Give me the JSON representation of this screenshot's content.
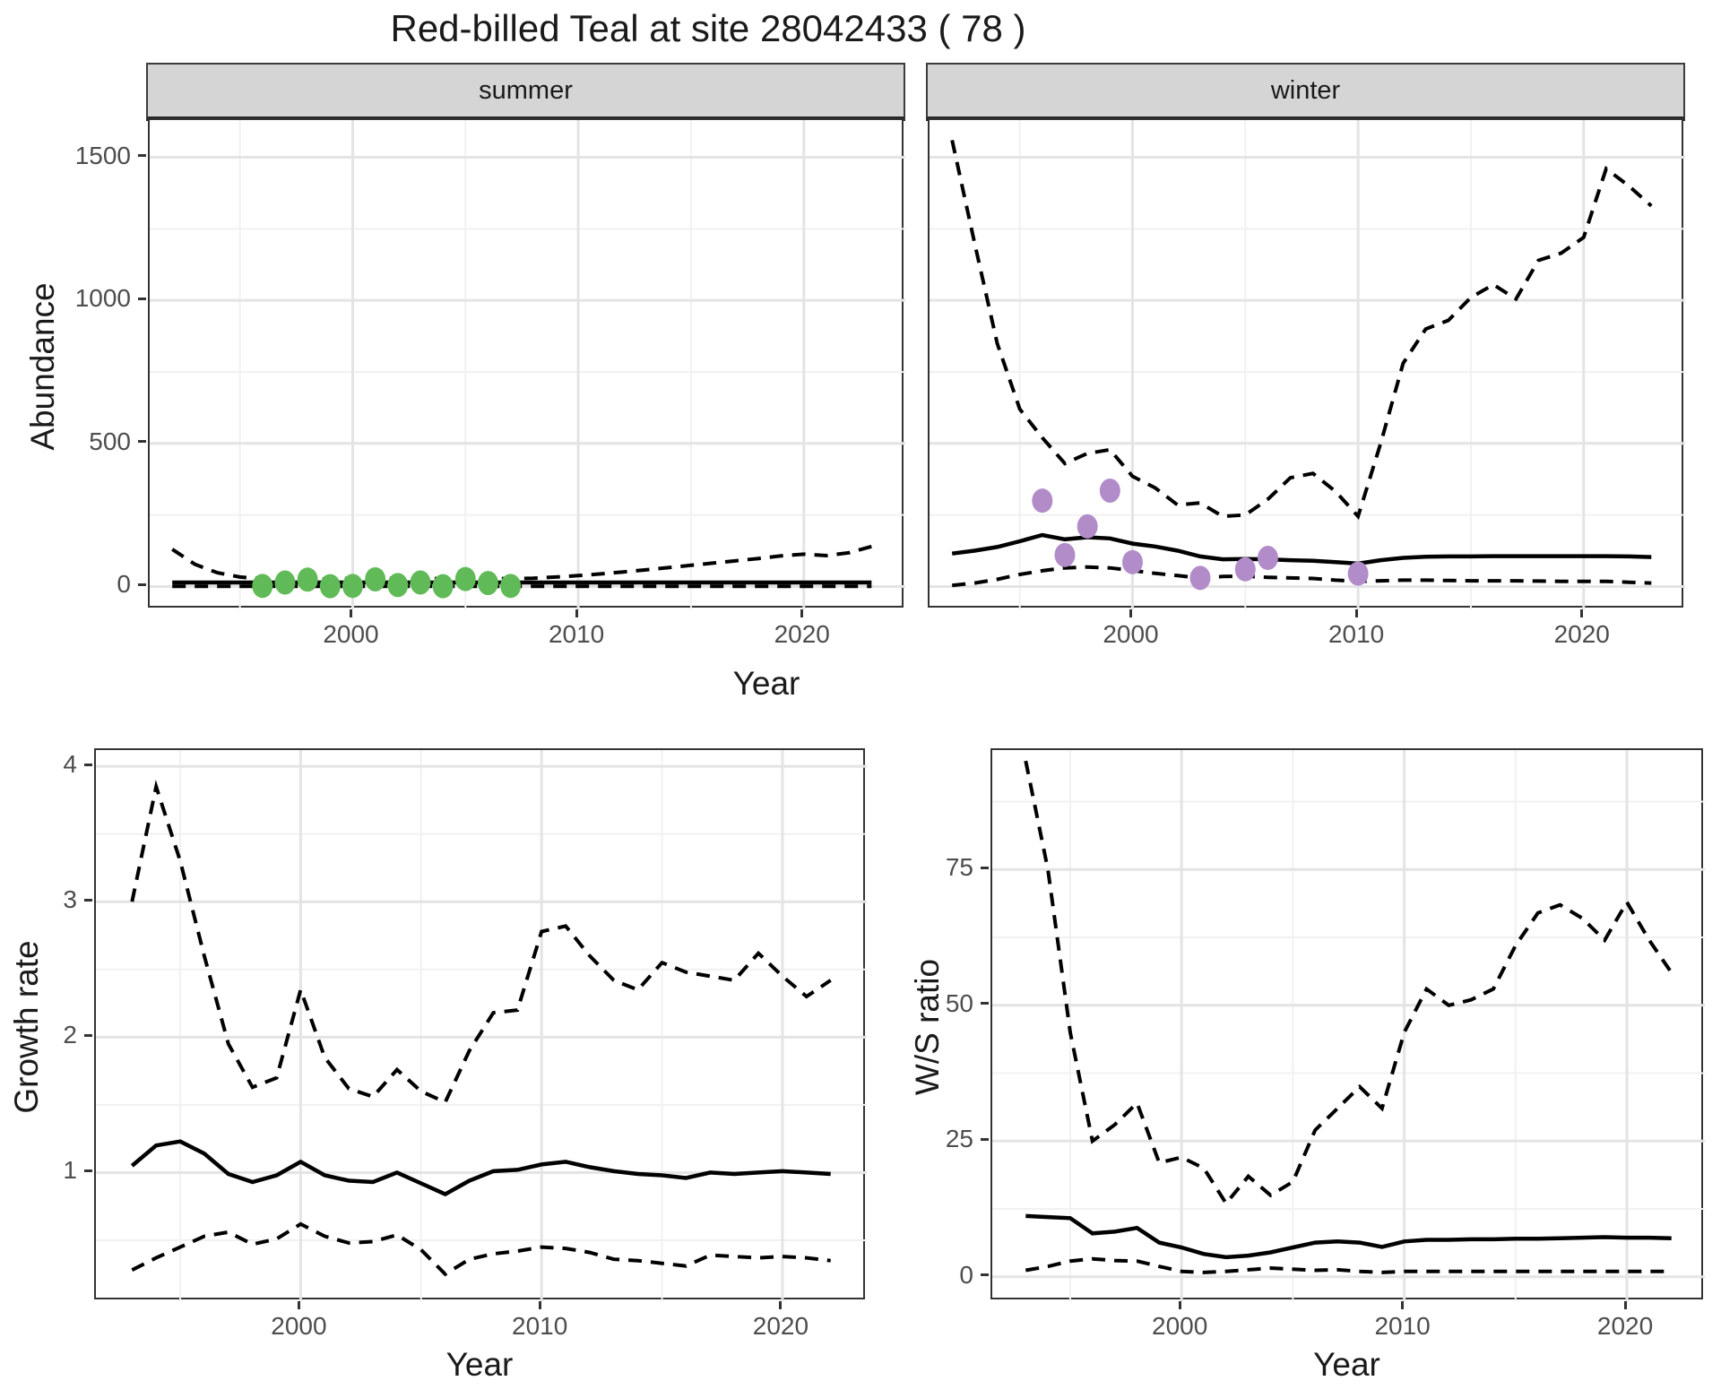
{
  "title": "Red-billed Teal at site 28042433 ( 78 )",
  "labels": {
    "y_top": "Abundance",
    "x_top": "Year",
    "y_bottom_left": "Growth rate",
    "x_bottom_left": "Year",
    "y_bottom_right": "W/S ratio",
    "x_bottom_right": "Year"
  },
  "colors": {
    "observed_summer_dot": "#61ba58",
    "observed_winter_dot": "#b18cc9",
    "line": "#000000",
    "strip_bg": "#d5d5d5",
    "grid_major": "#e4e4e4",
    "grid_minor": "#f1f1f1",
    "panel_border": "#333333",
    "tick_text": "#4d4d4d",
    "title_text": "#1a1a1a"
  },
  "chart_data": [
    {
      "type": "line",
      "facet_label": "summer",
      "ylabel": "Abundance",
      "xlabel": "Year",
      "legend_position": "none",
      "grid": true,
      "xlim": [
        1991,
        2024.5
      ],
      "ylim": [
        -80,
        1630
      ],
      "xticks": [
        2000,
        2010,
        2020
      ],
      "xminor": [
        1995,
        2005,
        2015
      ],
      "yticks": [
        0,
        500,
        1000,
        1500
      ],
      "yminor": [
        250,
        750,
        1250
      ],
      "x": [
        1992,
        1993,
        1994,
        1995,
        1996,
        1997,
        1998,
        1999,
        2000,
        2001,
        2002,
        2003,
        2004,
        2005,
        2006,
        2007,
        2008,
        2009,
        2010,
        2011,
        2012,
        2013,
        2014,
        2015,
        2016,
        2017,
        2018,
        2019,
        2020,
        2021,
        2022,
        2023
      ],
      "series": [
        {
          "name": "upper_95ci",
          "style": "dashed",
          "values": [
            130,
            78,
            48,
            33,
            27,
            26,
            25,
            27,
            28,
            29,
            28,
            29,
            27,
            30,
            28,
            27,
            29,
            33,
            38,
            44,
            51,
            58,
            66,
            74,
            82,
            90,
            98,
            107,
            113,
            108,
            118,
            140
          ]
        },
        {
          "name": "lower_95ci",
          "style": "dashed",
          "values": [
            0.5,
            0.5,
            0.5,
            0.5,
            0.5,
            0.5,
            0.5,
            0.5,
            0.5,
            0.5,
            0.5,
            0.5,
            0.5,
            0.5,
            0.5,
            0.5,
            0.5,
            0.5,
            0.5,
            0.5,
            0.5,
            0.5,
            0.5,
            0.5,
            0.5,
            0.5,
            0.5,
            0.5,
            0.5,
            0.5,
            0.5,
            0.5
          ]
        },
        {
          "name": "modelled_mean",
          "style": "solid",
          "values": [
            14,
            14,
            14,
            14,
            14,
            14,
            14,
            14,
            14,
            14,
            14,
            14,
            14,
            14,
            14,
            14,
            14,
            14,
            14,
            14,
            14,
            14,
            14,
            14,
            14,
            14,
            14,
            14,
            14,
            14,
            14,
            14
          ]
        }
      ],
      "points": {
        "name": "observed_counts",
        "color": "#61ba58",
        "x": [
          1996,
          1997,
          1998,
          1999,
          2000,
          2001,
          2002,
          2003,
          2004,
          2005,
          2006,
          2007
        ],
        "y": [
          2,
          14,
          24,
          1,
          2,
          25,
          5,
          14,
          1,
          26,
          12,
          2
        ]
      }
    },
    {
      "type": "line",
      "facet_label": "winter",
      "ylabel": "Abundance",
      "xlabel": "Year",
      "legend_position": "none",
      "grid": true,
      "xlim": [
        1991,
        2024.5
      ],
      "ylim": [
        -80,
        1630
      ],
      "xticks": [
        2000,
        2010,
        2020
      ],
      "xminor": [
        1995,
        2005,
        2015
      ],
      "yticks": [
        0,
        500,
        1000,
        1500
      ],
      "yminor": [
        250,
        750,
        1250
      ],
      "x": [
        1992,
        1993,
        1994,
        1995,
        1996,
        1997,
        1998,
        1999,
        2000,
        2001,
        2002,
        2003,
        2004,
        2005,
        2006,
        2007,
        2008,
        2009,
        2010,
        2011,
        2012,
        2013,
        2014,
        2015,
        2016,
        2017,
        2018,
        2019,
        2020,
        2021,
        2022,
        2023
      ],
      "series": [
        {
          "name": "upper_95ci",
          "style": "dashed",
          "values": [
            1560,
            1200,
            850,
            620,
            520,
            430,
            465,
            478,
            385,
            345,
            285,
            292,
            245,
            250,
            305,
            380,
            395,
            332,
            245,
            500,
            780,
            900,
            930,
            1010,
            1055,
            1005,
            1140,
            1165,
            1220,
            1460,
            1400,
            1330
          ]
        },
        {
          "name": "lower_95ci",
          "style": "dashed",
          "values": [
            4,
            12,
            25,
            42,
            55,
            65,
            68,
            65,
            56,
            46,
            38,
            30,
            35,
            36,
            32,
            30,
            28,
            22,
            18,
            20,
            22,
            22,
            21,
            20,
            20,
            20,
            19,
            18,
            18,
            18,
            15,
            12
          ]
        },
        {
          "name": "modelled_mean",
          "style": "solid",
          "values": [
            115,
            125,
            138,
            158,
            180,
            165,
            172,
            168,
            150,
            140,
            125,
            105,
            95,
            96,
            95,
            92,
            90,
            85,
            80,
            92,
            100,
            104,
            105,
            105,
            106,
            106,
            106,
            106,
            106,
            106,
            105,
            103
          ]
        }
      ],
      "points": {
        "name": "observed_counts",
        "color": "#b18cc9",
        "x": [
          1996,
          1997,
          1998,
          1999,
          2000,
          2003,
          2005,
          2006,
          2010
        ],
        "y": [
          300,
          110,
          210,
          335,
          85,
          30,
          60,
          100,
          45
        ]
      }
    },
    {
      "type": "line",
      "facet_label": null,
      "ylabel": "Growth rate",
      "xlabel": "Year",
      "legend_position": "none",
      "grid": true,
      "xlim": [
        1991.5,
        2023.5
      ],
      "ylim": [
        0.05,
        4.12
      ],
      "xticks": [
        2000,
        2010,
        2020
      ],
      "xminor": [
        1995,
        2005,
        2015
      ],
      "yticks": [
        1,
        2,
        3,
        4
      ],
      "yminor": [
        0.5,
        1.5,
        2.5,
        3.5
      ],
      "x": [
        1993,
        1994,
        1995,
        1996,
        1997,
        1998,
        1999,
        2000,
        2001,
        2002,
        2003,
        2004,
        2005,
        2006,
        2007,
        2008,
        2009,
        2010,
        2011,
        2012,
        2013,
        2014,
        2015,
        2016,
        2017,
        2018,
        2019,
        2020,
        2021,
        2022
      ],
      "series": [
        {
          "name": "upper_95ci",
          "style": "dashed",
          "values": [
            3.0,
            3.85,
            3.3,
            2.6,
            1.95,
            1.63,
            1.7,
            2.35,
            1.85,
            1.62,
            1.56,
            1.76,
            1.6,
            1.52,
            1.9,
            2.18,
            2.2,
            2.78,
            2.82,
            2.6,
            2.42,
            2.35,
            2.55,
            2.48,
            2.45,
            2.42,
            2.62,
            2.45,
            2.3,
            2.42
          ]
        },
        {
          "name": "lower_95ci",
          "style": "dashed",
          "values": [
            0.28,
            0.37,
            0.45,
            0.53,
            0.56,
            0.47,
            0.51,
            0.62,
            0.53,
            0.48,
            0.49,
            0.54,
            0.43,
            0.25,
            0.36,
            0.4,
            0.42,
            0.45,
            0.44,
            0.41,
            0.36,
            0.35,
            0.33,
            0.31,
            0.39,
            0.38,
            0.37,
            0.38,
            0.37,
            0.35
          ]
        },
        {
          "name": "modelled_mean",
          "style": "solid",
          "values": [
            1.05,
            1.2,
            1.23,
            1.14,
            0.99,
            0.93,
            0.98,
            1.08,
            0.98,
            0.94,
            0.93,
            1.0,
            0.92,
            0.84,
            0.94,
            1.01,
            1.02,
            1.06,
            1.08,
            1.04,
            1.01,
            0.99,
            0.98,
            0.96,
            1.0,
            0.99,
            1.0,
            1.01,
            1.0,
            0.99
          ]
        }
      ],
      "points": null
    },
    {
      "type": "line",
      "facet_label": null,
      "ylabel": "W/S ratio",
      "xlabel": "Year",
      "legend_position": "none",
      "grid": true,
      "xlim": [
        1991.5,
        2023.5
      ],
      "ylim": [
        -4.5,
        97
      ],
      "xticks": [
        2000,
        2010,
        2020
      ],
      "xminor": [
        1995,
        2005,
        2015
      ],
      "yticks": [
        0,
        25,
        50,
        75
      ],
      "yminor": [
        12.5,
        37.5,
        62.5,
        87.5
      ],
      "x": [
        1993,
        1994,
        1995,
        1996,
        1997,
        1998,
        1999,
        2000,
        2001,
        2002,
        2003,
        2004,
        2005,
        2006,
        2007,
        2008,
        2009,
        2010,
        2011,
        2012,
        2013,
        2014,
        2015,
        2016,
        2017,
        2018,
        2019,
        2020,
        2021,
        2022
      ],
      "series": [
        {
          "name": "upper_95ci",
          "style": "dashed",
          "values": [
            95,
            75,
            45,
            25,
            28,
            32,
            21,
            22,
            20,
            13.5,
            18.5,
            15,
            17.5,
            27,
            31,
            35,
            31,
            45,
            53,
            50,
            51,
            53,
            61,
            67,
            68.5,
            66,
            62,
            69,
            62,
            56
          ]
        },
        {
          "name": "lower_95ci",
          "style": "dashed",
          "values": [
            1.2,
            1.9,
            2.9,
            3.3,
            3.0,
            2.9,
            1.9,
            1.0,
            0.8,
            1.0,
            1.3,
            1.6,
            1.4,
            1.2,
            1.3,
            1.0,
            0.8,
            1.0,
            1.0,
            1.0,
            1.0,
            1.0,
            1.0,
            1.0,
            1.0,
            1.0,
            1.0,
            1.0,
            1.0,
            1.0
          ]
        },
        {
          "name": "modelled_mean",
          "style": "solid",
          "values": [
            11.2,
            11.0,
            10.8,
            8.0,
            8.3,
            9.0,
            6.3,
            5.4,
            4.2,
            3.6,
            3.9,
            4.5,
            5.4,
            6.3,
            6.5,
            6.3,
            5.5,
            6.5,
            6.8,
            6.8,
            6.9,
            6.9,
            7.0,
            7.0,
            7.1,
            7.2,
            7.3,
            7.2,
            7.2,
            7.1
          ]
        }
      ],
      "points": null
    }
  ]
}
